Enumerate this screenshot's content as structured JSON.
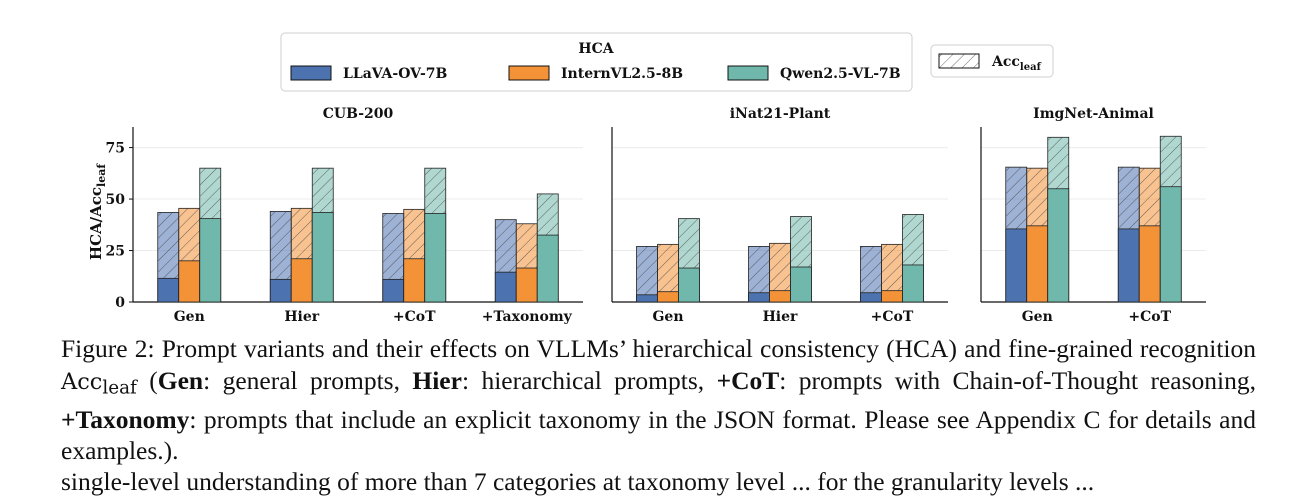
{
  "chart_data": {
    "type": "bar",
    "legend": {
      "title": "HCA",
      "hatch_label": "Acc",
      "hatch_label_sub": "leaf",
      "placement": "top-center"
    },
    "ylabel": "HCA/Acc",
    "ylabel_sub": "leaf",
    "ylim": [
      0,
      85
    ],
    "yticks": [
      "0",
      "25",
      "50",
      "75"
    ],
    "grid": true,
    "models": [
      {
        "name": "LLaVA-OV-7B",
        "color": "#4c72b0"
      },
      {
        "name": "InternVL2.5-8B",
        "color": "#f39237"
      },
      {
        "name": "Qwen2.5-VL-7B",
        "color": "#6fb8ab"
      }
    ],
    "panels": [
      {
        "title": "CUB-200",
        "categories": [
          "Gen",
          "Hier",
          "+CoT",
          "+Taxonomy"
        ],
        "series": [
          {
            "name": "LLaVA-OV-7B",
            "hca": [
              11.5,
              11.0,
              11.0,
              14.5
            ],
            "acc_leaf": [
              43.5,
              44.0,
              43.0,
              40.0
            ]
          },
          {
            "name": "InternVL2.5-8B",
            "hca": [
              20.0,
              21.0,
              21.0,
              16.5
            ],
            "acc_leaf": [
              45.5,
              45.5,
              45.0,
              38.0
            ]
          },
          {
            "name": "Qwen2.5-VL-7B",
            "hca": [
              40.5,
              43.5,
              43.0,
              32.5
            ],
            "acc_leaf": [
              65.0,
              65.0,
              65.0,
              52.5
            ]
          }
        ]
      },
      {
        "title": "iNat21-Plant",
        "categories": [
          "Gen",
          "Hier",
          "+CoT"
        ],
        "series": [
          {
            "name": "LLaVA-OV-7B",
            "hca": [
              3.5,
              4.5,
              4.5
            ],
            "acc_leaf": [
              27.0,
              27.0,
              27.0
            ]
          },
          {
            "name": "InternVL2.5-8B",
            "hca": [
              5.0,
              5.5,
              5.5
            ],
            "acc_leaf": [
              28.0,
              28.5,
              28.0
            ]
          },
          {
            "name": "Qwen2.5-VL-7B",
            "hca": [
              16.5,
              17.0,
              18.0
            ],
            "acc_leaf": [
              40.5,
              41.5,
              42.5
            ]
          }
        ]
      },
      {
        "title": "ImgNet-Animal",
        "categories": [
          "Gen",
          "+CoT"
        ],
        "series": [
          {
            "name": "LLaVA-OV-7B",
            "hca": [
              35.5,
              35.5
            ],
            "acc_leaf": [
              65.5,
              65.5
            ]
          },
          {
            "name": "InternVL2.5-8B",
            "hca": [
              37.0,
              37.0
            ],
            "acc_leaf": [
              65.0,
              65.0
            ]
          },
          {
            "name": "Qwen2.5-VL-7B",
            "hca": [
              55.0,
              56.0
            ],
            "acc_leaf": [
              80.0,
              80.5
            ]
          }
        ]
      }
    ]
  },
  "caption": {
    "s1": "Figure 2: Prompt variants and their effects on VLLMs’ hierarchical consistency (HCA) and fine-grained recognition ",
    "acc": "Acc",
    "acc_sub": "leaf",
    "s2": " (",
    "k1": "Gen",
    "t1": ": general prompts, ",
    "k2": "Hier",
    "t2": ": hierarchical prompts, ",
    "k3": "+CoT",
    "t3": ": prompts with Chain-of-Thought reasoning, ",
    "k4": "+Taxonomy",
    "t4": ": prompts that include an explicit taxonomy in the JSON format. Please see Appendix C for details and examples.)."
  },
  "trailing_text": "single-level understanding of more than 7 categories at taxonomy level ... for the granularity levels ..."
}
